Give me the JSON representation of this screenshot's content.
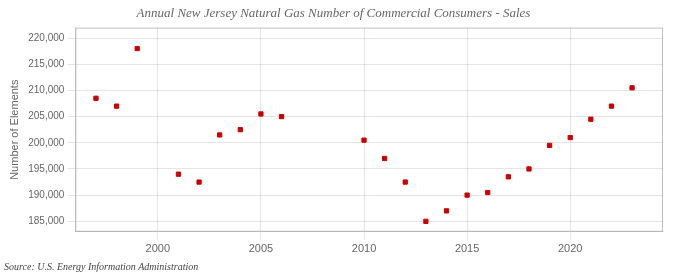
{
  "chart_data": {
    "type": "scatter",
    "title": "Annual New Jersey Natural Gas Number of Commercial Consumers - Sales",
    "ylabel": "Number of Elements",
    "annotations": [
      "Source: U.S. Energy Information Administration"
    ],
    "x": [
      1997,
      1998,
      1999,
      2001,
      2002,
      2003,
      2004,
      2005,
      2006,
      2010,
      2011,
      2012,
      2013,
      2014,
      2015,
      2016,
      2017,
      2018,
      2019,
      2020,
      2021,
      2022,
      2023
    ],
    "values": [
      208500,
      207000,
      218000,
      194000,
      192500,
      201500,
      202500,
      205500,
      205000,
      200500,
      197000,
      192500,
      185000,
      187000,
      190000,
      190500,
      193500,
      195000,
      199500,
      201000,
      204500,
      207000,
      210500
    ],
    "color": "#cc0000",
    "marker": "square",
    "xlim": [
      1996,
      2024.5
    ],
    "ylim": [
      183000,
      222000
    ],
    "xticks": [
      2000,
      2005,
      2010,
      2015,
      2020
    ],
    "yticks": [
      {
        "value": 185000,
        "label": "185,000"
      },
      {
        "value": 190000,
        "label": "190,000"
      },
      {
        "value": 195000,
        "label": "195,000"
      },
      {
        "value": 200000,
        "label": "200,000"
      },
      {
        "value": 205000,
        "label": "205,000"
      },
      {
        "value": 210000,
        "label": "210,000"
      },
      {
        "value": 215000,
        "label": "215,000"
      },
      {
        "value": 220000,
        "label": "220,000"
      }
    ],
    "grid": true
  }
}
